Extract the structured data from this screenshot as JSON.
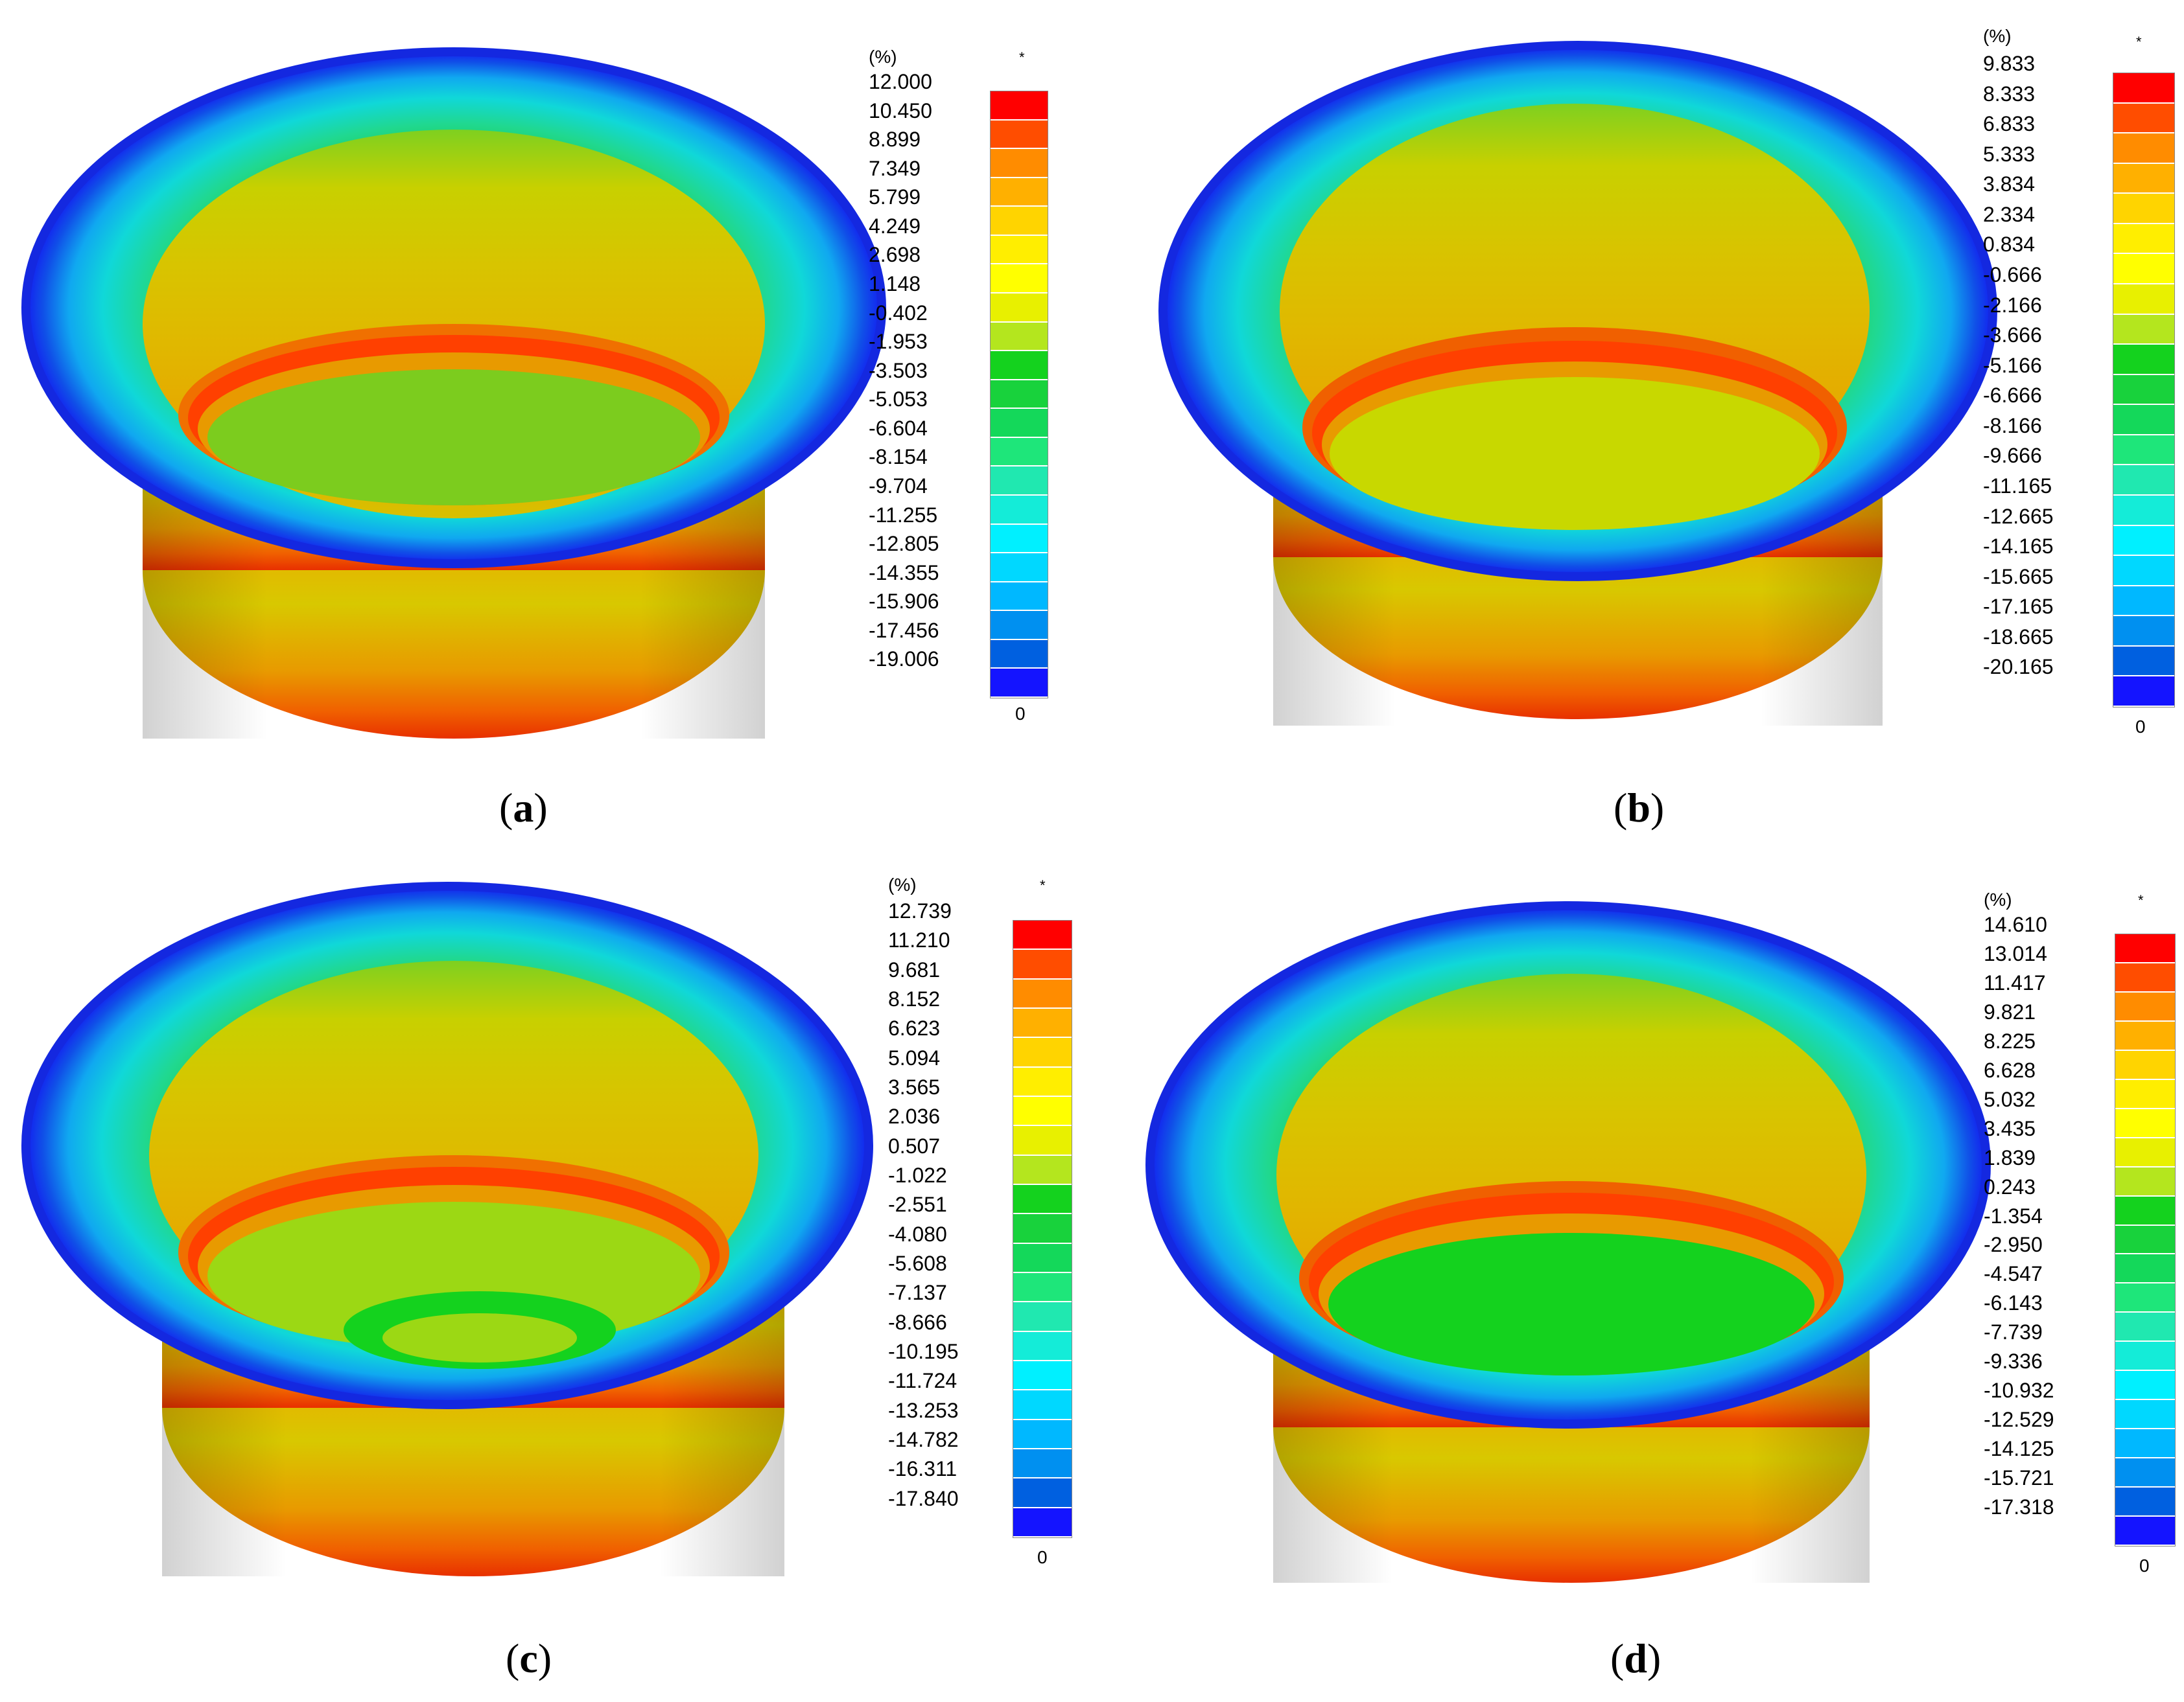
{
  "legend_unit": "(%)",
  "legend_marker": "*",
  "legend_zero": "0",
  "colors": [
    "#ff0000",
    "#ff4d00",
    "#ff8c00",
    "#ffb000",
    "#ffd400",
    "#ffee00",
    "#ffff00",
    "#e8f000",
    "#b4e61e",
    "#14d21e",
    "#18d23c",
    "#14d85a",
    "#1ee67a",
    "#20e8b0",
    "#14ecd8",
    "#00f0ff",
    "#00d8ff",
    "#00b8ff",
    "#0090f0",
    "#0060e0",
    "#1414ff"
  ],
  "panels": [
    {
      "caption_open": "(",
      "caption_letter": "a",
      "caption_close": ")",
      "values": [
        "12.000",
        "10.450",
        "8.899",
        "7.349",
        "5.799",
        "4.249",
        "2.698",
        "1.148",
        "-0.402",
        "-1.953",
        "-3.503",
        "-5.053",
        "-6.604",
        "-8.154",
        "-9.704",
        "-11.255",
        "-12.805",
        "-14.355",
        "-15.906",
        "-17.456",
        "-19.006"
      ]
    },
    {
      "caption_open": "(",
      "caption_letter": "b",
      "caption_close": ")",
      "values": [
        "9.833",
        "8.333",
        "6.833",
        "5.333",
        "3.834",
        "2.334",
        "0.834",
        "-0.666",
        "-2.166",
        "-3.666",
        "-5.166",
        "-6.666",
        "-8.166",
        "-9.666",
        "-11.165",
        "-12.665",
        "-14.165",
        "-15.665",
        "-17.165",
        "-18.665",
        "-20.165"
      ]
    },
    {
      "caption_open": "(",
      "caption_letter": "c",
      "caption_close": ")",
      "values": [
        "12.739",
        "11.210",
        "9.681",
        "8.152",
        "6.623",
        "5.094",
        "3.565",
        "2.036",
        "0.507",
        "-1.022",
        "-2.551",
        "-4.080",
        "-5.608",
        "-7.137",
        "-8.666",
        "-10.195",
        "-11.724",
        "-13.253",
        "-14.782",
        "-16.311",
        "-17.840"
      ]
    },
    {
      "caption_open": "(",
      "caption_letter": "d",
      "caption_close": ")",
      "values": [
        "14.610",
        "13.014",
        "11.417",
        "9.821",
        "8.225",
        "6.628",
        "5.032",
        "3.435",
        "1.839",
        "0.243",
        "-1.354",
        "-2.950",
        "-4.547",
        "-6.143",
        "-7.739",
        "-9.336",
        "-10.932",
        "-12.529",
        "-14.125",
        "-15.721",
        "-17.318"
      ]
    }
  ]
}
